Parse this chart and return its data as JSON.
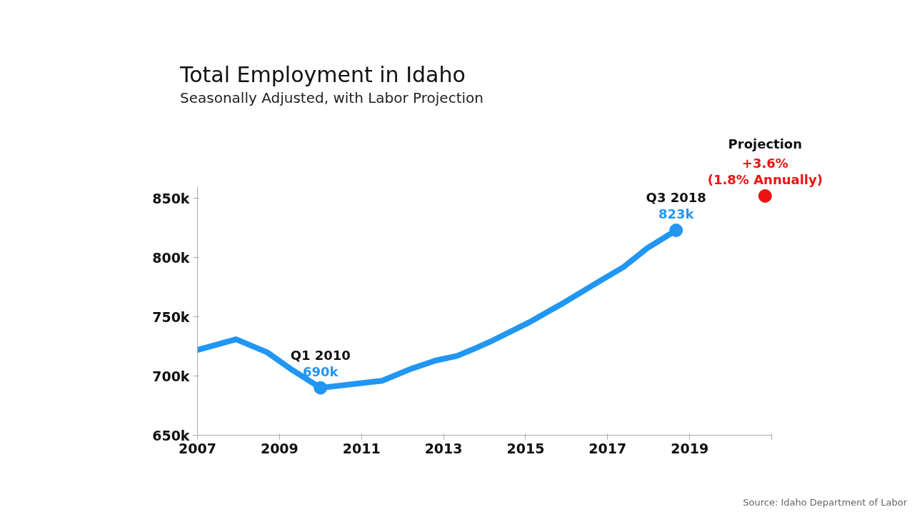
{
  "chart_data": {
    "type": "line",
    "title": "Total Employment in Idaho",
    "subtitle": "Seasonally Adjusted, with Labor Projection",
    "xlim": [
      2007,
      2021
    ],
    "xticks": [
      2007,
      2009,
      2011,
      2013,
      2015,
      2017,
      2019,
      {
        "value": 2021,
        "label": null
      }
    ],
    "ylim": [
      650,
      860
    ],
    "yticks": [
      {
        "value": 650,
        "label": "650k"
      },
      {
        "value": 700,
        "label": "700k"
      },
      {
        "value": 750,
        "label": "750k"
      },
      {
        "value": 800,
        "label": "800k"
      },
      {
        "value": 850,
        "label": "850k"
      }
    ],
    "line_style": "solid",
    "series": [
      {
        "color": "#2196f3",
        "marker": "none",
        "x": [
          2007,
          2007.94,
          2008.7,
          2009.27,
          2010,
          2011,
          2011.5,
          2012.2,
          2012.8,
          2013.33,
          2013.68,
          2014.2,
          2015.07,
          2015.94,
          2016.8,
          2017.39,
          2017.97,
          2018.67
        ],
        "values": [
          722,
          731,
          720,
          706,
          690,
          694,
          696,
          706,
          713,
          717,
          722,
          730,
          745,
          762,
          780,
          792,
          808,
          823
        ]
      },
      {
        "type": "scatter",
        "color": "#2196f3",
        "marker": "circle",
        "x": [
          2010,
          2018.67
        ],
        "values": [
          690,
          823
        ],
        "value_labels": [
          "690k",
          "823k"
        ]
      },
      {
        "type": "scatter",
        "color": "#ee1111",
        "marker": "circle",
        "x": [
          2020.84
        ],
        "values": [
          852
        ]
      }
    ],
    "annotations": [
      {
        "text": "Q1 2010",
        "x": 2010,
        "y": 690
      },
      {
        "text": "Q3 2018",
        "x": 2018.67,
        "y": 823
      },
      "Projection",
      {
        "text": "+3.6%",
        "x": 2020.84,
        "y": 852
      },
      {
        "text": "(1.8% Annually)",
        "x": 2020.84,
        "y": 852
      },
      "Source: Idaho Department of Labor"
    ]
  }
}
